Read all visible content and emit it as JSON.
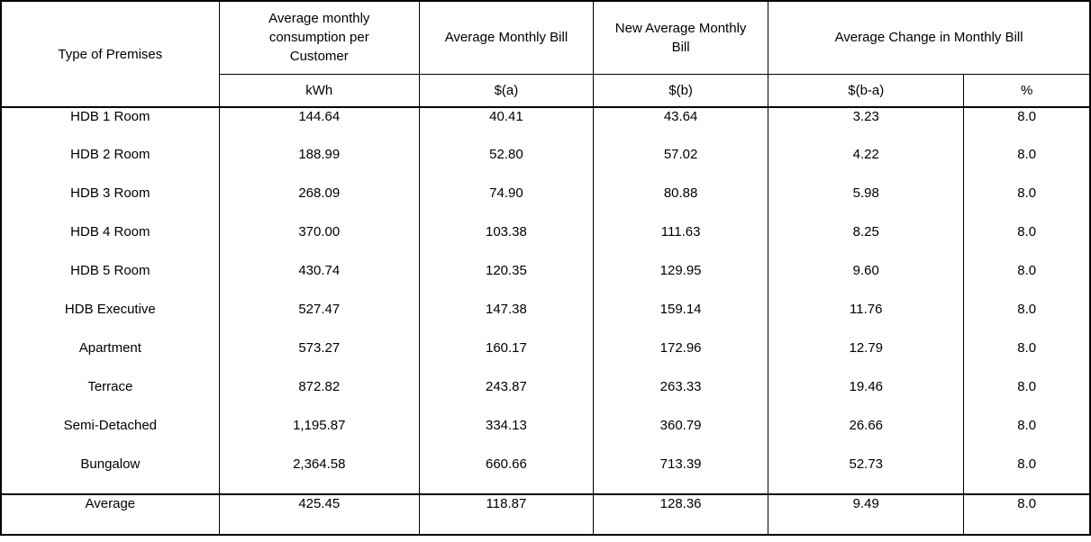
{
  "table": {
    "header": {
      "type_of_premises": "Type of Premises",
      "consumption": "Average monthly\nconsumption per\nCustomer",
      "average_bill": "Average Monthly Bill",
      "new_average_bill": "New Average Monthly\nBill",
      "change": "Average Change in Monthly Bill"
    },
    "units": {
      "consumption": "kWh",
      "average_bill": "$(a)",
      "new_average_bill": "$(b)",
      "change_amount": "$(b-a)",
      "change_percent": "%"
    },
    "rows": [
      [
        "HDB 1 Room",
        "144.64",
        "40.41",
        "43.64",
        "3.23",
        "8.0"
      ],
      [
        "HDB 2 Room",
        "188.99",
        "52.80",
        "57.02",
        "4.22",
        "8.0"
      ],
      [
        "HDB 3 Room",
        "268.09",
        "74.90",
        "80.88",
        "5.98",
        "8.0"
      ],
      [
        "HDB 4 Room",
        "370.00",
        "103.38",
        "111.63",
        "8.25",
        "8.0"
      ],
      [
        "HDB 5 Room",
        "430.74",
        "120.35",
        "129.95",
        "9.60",
        "8.0"
      ],
      [
        "HDB Executive",
        "527.47",
        "147.38",
        "159.14",
        "11.76",
        "8.0"
      ],
      [
        "Apartment",
        "573.27",
        "160.17",
        "172.96",
        "12.79",
        "8.0"
      ],
      [
        "Terrace",
        "872.82",
        "243.87",
        "263.33",
        "19.46",
        "8.0"
      ],
      [
        "Semi-Detached",
        "1,195.87",
        "334.13",
        "360.79",
        "26.66",
        "8.0"
      ],
      [
        "Bungalow",
        "2,364.58",
        "660.66",
        "713.39",
        "52.73",
        "8.0"
      ]
    ],
    "average": {
      "label": "Average",
      "kwh": "425.45",
      "bill_a": "118.87",
      "bill_b": "128.36",
      "change_amount": "9.49",
      "change_percent": "8.0"
    },
    "colors": {
      "border": "#000000",
      "text": "#000000",
      "background": "#ffffff"
    }
  }
}
